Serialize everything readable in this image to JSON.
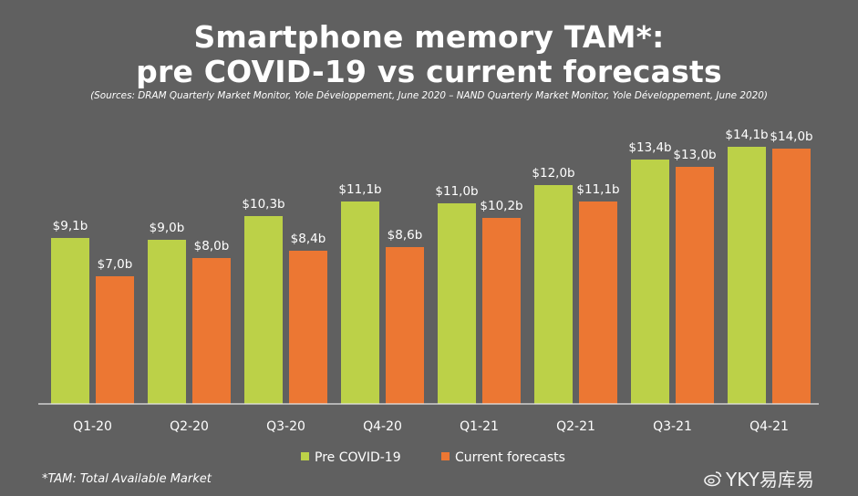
{
  "title_line1": "Smartphone memory TAM*:",
  "title_line2": "pre COVID-19 vs current forecasts",
  "sources": "(Sources: DRAM Quarterly Market Monitor, Yole Développement, June 2020 – NAND Quarterly Market Monitor, Yole Développement, June 2020)",
  "footnote": "*TAM: Total Available Market",
  "watermark": "YKY易库易",
  "colors": {
    "background": "#606060",
    "pre_covid": "#bcd148",
    "current": "#ec7733",
    "text": "#ffffff",
    "axis": "#e6e6e6"
  },
  "chart_data": {
    "type": "bar",
    "title": "Smartphone memory TAM*: pre COVID-19 vs current forecasts",
    "categories": [
      "Q1-20",
      "Q2-20",
      "Q3-20",
      "Q4-20",
      "Q1-21",
      "Q2-21",
      "Q3-21",
      "Q4-21"
    ],
    "series": [
      {
        "name": "Pre COVID-19",
        "values": [
          9.1,
          9.0,
          10.3,
          11.1,
          11.0,
          12.0,
          13.4,
          14.1
        ],
        "labels": [
          "$9,1b",
          "$9,0b",
          "$10,3b",
          "$11,1b",
          "$11,0b",
          "$12,0b",
          "$13,4b",
          "$14,1b"
        ]
      },
      {
        "name": "Current forecasts",
        "values": [
          7.0,
          8.0,
          8.4,
          8.6,
          10.2,
          11.1,
          13.0,
          14.0
        ],
        "labels": [
          "$7,0b",
          "$8,0b",
          "$8,4b",
          "$8,6b",
          "$10,2b",
          "$11,1b",
          "$13,0b",
          "$14,0b"
        ]
      }
    ],
    "xlabel": "",
    "ylabel": "",
    "ylim": [
      0,
      14.1
    ],
    "grid": false,
    "legend_position": "bottom-center"
  }
}
